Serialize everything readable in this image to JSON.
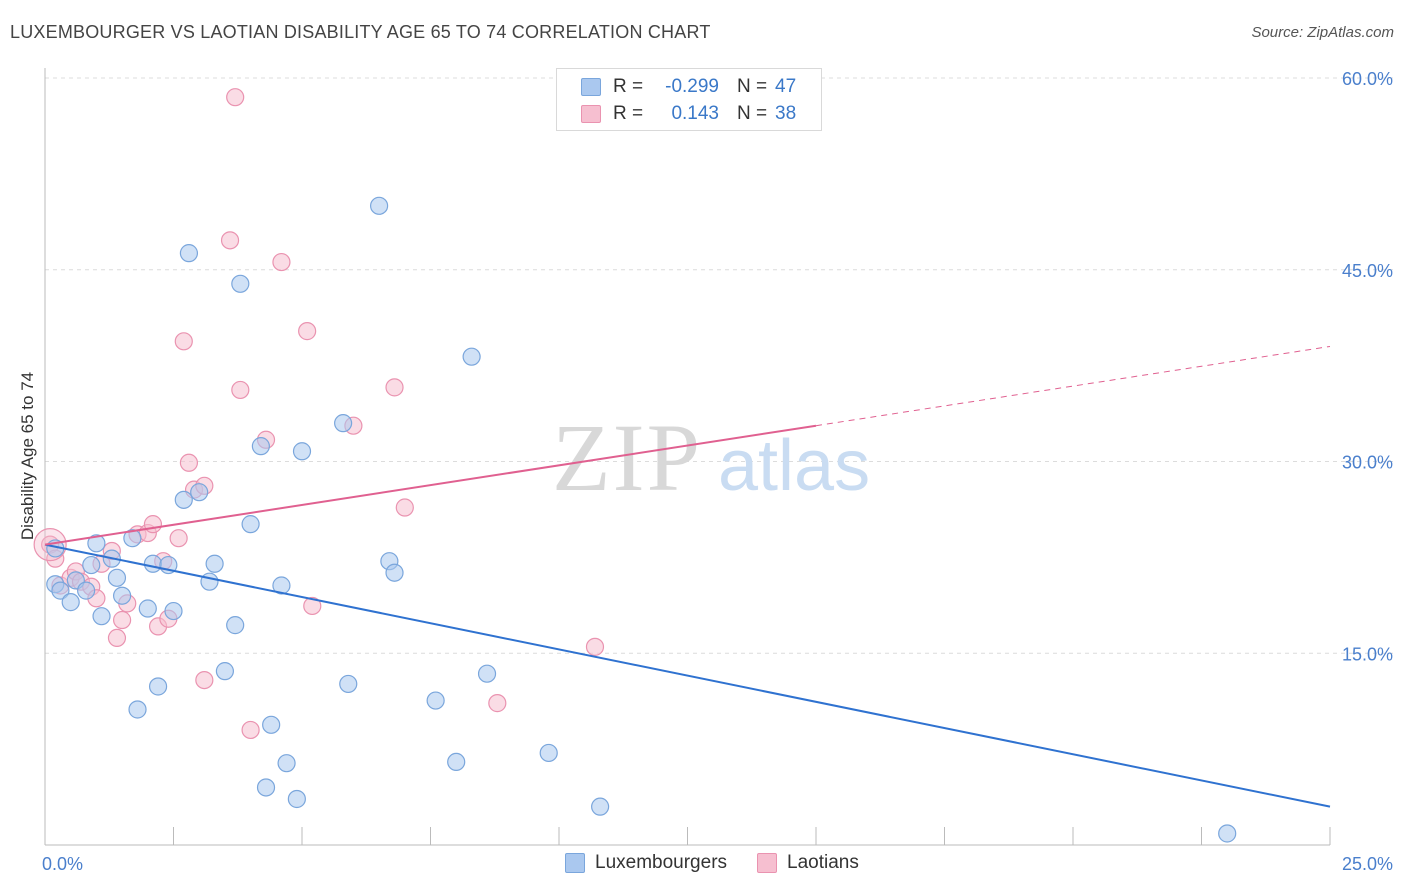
{
  "title": "LUXEMBOURGER VS LAOTIAN DISABILITY AGE 65 TO 74 CORRELATION CHART",
  "source": "Source: ZipAtlas.com",
  "watermark": {
    "zip": "ZIP",
    "atlas": "atlas"
  },
  "colors": {
    "blue_fill": "#aac8ef",
    "blue_stroke": "#7aa6dc",
    "blue_line": "#2f72d0",
    "pink_fill": "#f6bfd0",
    "pink_stroke": "#ea93b0",
    "pink_line": "#e06090",
    "axis_label": "#4a7fcc",
    "grid": "#dcdcdc"
  },
  "legend": {
    "rows": [
      {
        "r_label": "R =",
        "r_value": "-0.299",
        "n_label": "N =",
        "n_value": "47"
      },
      {
        "r_label": "R =",
        "r_value": "0.143",
        "n_label": "N =",
        "n_value": "38"
      }
    ]
  },
  "bottom_legend": {
    "items": [
      "Luxembourgers",
      "Laotians"
    ]
  },
  "chart_data": {
    "type": "scatter",
    "title": "LUXEMBOURGER VS LAOTIAN DISABILITY AGE 65 TO 74 CORRELATION CHART",
    "xlabel": "",
    "ylabel": "Disability Age 65 to 74",
    "xlim": [
      0,
      25
    ],
    "ylim": [
      0,
      60
    ],
    "x_tick_labels": [
      "0.0%",
      "25.0%"
    ],
    "y_ticks": [
      15,
      30,
      45,
      60
    ],
    "y_tick_labels": [
      "15.0%",
      "30.0%",
      "45.0%",
      "60.0%"
    ],
    "grid": true,
    "legend_position": "top-center",
    "series": [
      {
        "name": "Luxembourgers",
        "color": "#aac8ef",
        "trend": {
          "x": [
            0,
            25
          ],
          "y": [
            23.5,
            3.0
          ],
          "dashed_from": null
        },
        "points": [
          [
            0.2,
            23.2
          ],
          [
            0.2,
            20.4
          ],
          [
            0.3,
            19.9
          ],
          [
            0.5,
            19.0
          ],
          [
            0.6,
            20.7
          ],
          [
            0.8,
            19.9
          ],
          [
            0.9,
            21.9
          ],
          [
            1.0,
            23.6
          ],
          [
            1.1,
            17.9
          ],
          [
            1.3,
            22.4
          ],
          [
            1.4,
            20.9
          ],
          [
            1.5,
            19.5
          ],
          [
            1.7,
            24.0
          ],
          [
            1.8,
            10.6
          ],
          [
            2.0,
            18.5
          ],
          [
            2.1,
            22.0
          ],
          [
            2.2,
            12.4
          ],
          [
            2.4,
            21.9
          ],
          [
            2.5,
            18.3
          ],
          [
            2.7,
            27.0
          ],
          [
            2.8,
            46.3
          ],
          [
            3.0,
            27.6
          ],
          [
            3.2,
            20.6
          ],
          [
            3.3,
            22.0
          ],
          [
            3.5,
            13.6
          ],
          [
            3.7,
            17.2
          ],
          [
            3.8,
            43.9
          ],
          [
            4.0,
            25.1
          ],
          [
            4.2,
            31.2
          ],
          [
            4.3,
            4.5
          ],
          [
            4.4,
            9.4
          ],
          [
            4.6,
            20.3
          ],
          [
            4.7,
            6.4
          ],
          [
            4.9,
            3.6
          ],
          [
            5.0,
            30.8
          ],
          [
            5.8,
            33.0
          ],
          [
            5.9,
            12.6
          ],
          [
            6.5,
            50.0
          ],
          [
            6.7,
            22.2
          ],
          [
            6.8,
            21.3
          ],
          [
            7.6,
            11.3
          ],
          [
            8.0,
            6.5
          ],
          [
            8.3,
            38.2
          ],
          [
            8.6,
            13.4
          ],
          [
            9.8,
            7.2
          ],
          [
            10.8,
            3.0
          ],
          [
            23.0,
            0.9
          ]
        ]
      },
      {
        "name": "Laotians",
        "color": "#f6bfd0",
        "trend": {
          "x": [
            0,
            25
          ],
          "y": [
            23.5,
            39.0
          ],
          "dashed_from": 15
        },
        "points": [
          [
            0.1,
            23.5
          ],
          [
            0.2,
            22.4
          ],
          [
            0.3,
            20.3
          ],
          [
            0.5,
            20.9
          ],
          [
            0.6,
            21.4
          ],
          [
            0.7,
            20.6
          ],
          [
            0.9,
            20.2
          ],
          [
            1.0,
            19.3
          ],
          [
            1.1,
            22.0
          ],
          [
            1.3,
            23.0
          ],
          [
            1.4,
            16.2
          ],
          [
            1.5,
            17.6
          ],
          [
            1.6,
            18.9
          ],
          [
            1.8,
            24.3
          ],
          [
            2.0,
            24.4
          ],
          [
            2.1,
            25.1
          ],
          [
            2.2,
            17.1
          ],
          [
            2.3,
            22.2
          ],
          [
            2.4,
            17.7
          ],
          [
            2.6,
            24.0
          ],
          [
            2.7,
            39.4
          ],
          [
            2.8,
            29.9
          ],
          [
            2.9,
            27.8
          ],
          [
            3.1,
            28.1
          ],
          [
            3.1,
            12.9
          ],
          [
            3.6,
            47.3
          ],
          [
            3.7,
            58.5
          ],
          [
            3.8,
            35.6
          ],
          [
            4.0,
            9.0
          ],
          [
            4.3,
            31.7
          ],
          [
            4.6,
            45.6
          ],
          [
            5.1,
            40.2
          ],
          [
            5.2,
            18.7
          ],
          [
            6.0,
            32.8
          ],
          [
            6.8,
            35.8
          ],
          [
            7.0,
            26.4
          ],
          [
            8.8,
            11.1
          ],
          [
            10.7,
            15.5
          ]
        ]
      }
    ]
  }
}
